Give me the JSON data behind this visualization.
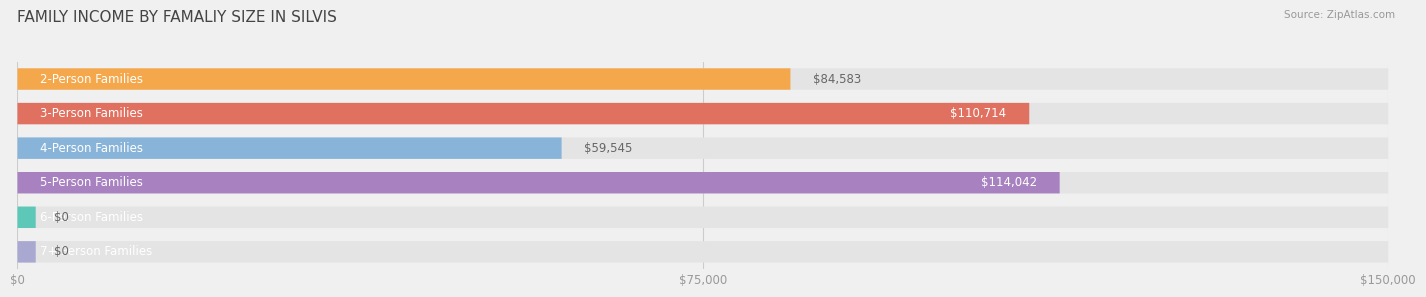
{
  "title": "FAMILY INCOME BY FAMALIY SIZE IN SILVIS",
  "source": "Source: ZipAtlas.com",
  "categories": [
    "2-Person Families",
    "3-Person Families",
    "4-Person Families",
    "5-Person Families",
    "6-Person Families",
    "7+ Person Families"
  ],
  "values": [
    84583,
    110714,
    59545,
    114042,
    0,
    0
  ],
  "bar_colors": [
    "#F5A84B",
    "#E07060",
    "#89B4D9",
    "#A882C0",
    "#5DC8B8",
    "#A8A8D0"
  ],
  "label_colors": [
    "#ffffff",
    "#ffffff",
    "#ffffff",
    "#ffffff",
    "#ffffff",
    "#ffffff"
  ],
  "xlim": [
    0,
    150000
  ],
  "xticks": [
    0,
    75000,
    150000
  ],
  "xtick_labels": [
    "$0",
    "$75,000",
    "$150,000"
  ],
  "bar_height": 0.62,
  "background_color": "#f0f0f0",
  "bar_bg_color": "#e4e4e4",
  "value_labels": [
    "$84,583",
    "$110,714",
    "$59,545",
    "$114,042",
    "$0",
    "$0"
  ],
  "title_fontsize": 11,
  "label_fontsize": 8.5,
  "value_fontsize": 8.5,
  "tick_fontsize": 8.5,
  "value_label_inside": [
    false,
    true,
    false,
    true,
    false,
    false
  ]
}
